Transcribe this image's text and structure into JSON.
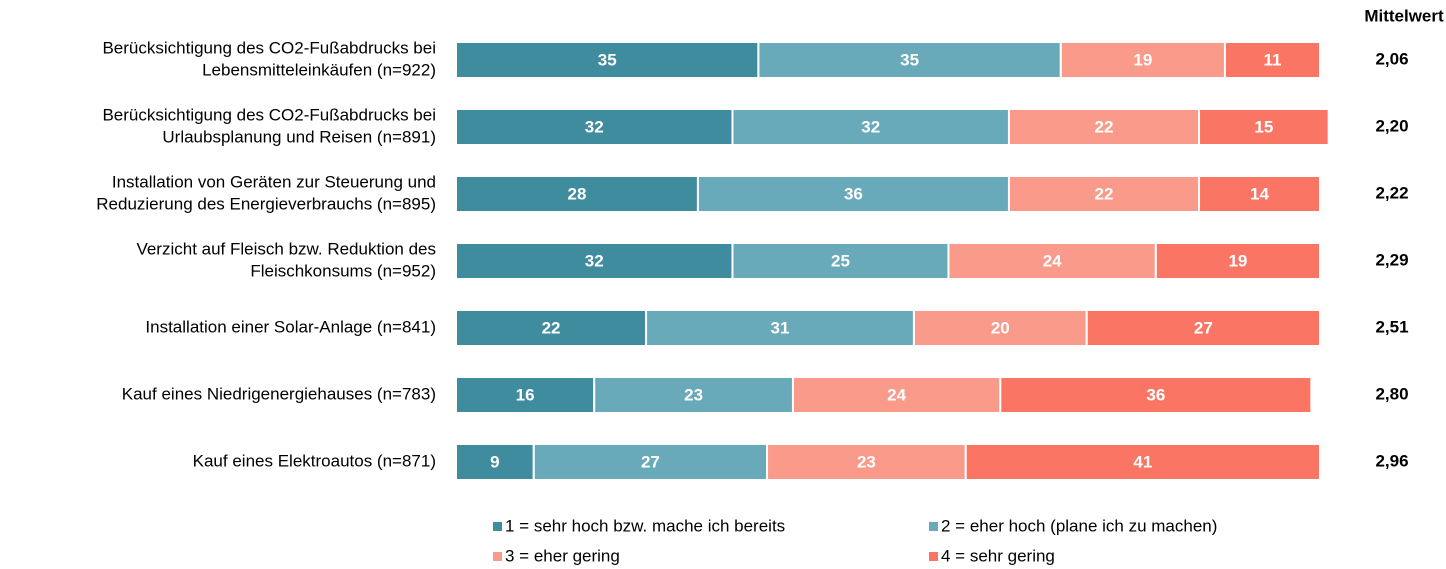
{
  "chart_data": {
    "type": "stacked-bar-horizontal",
    "categories": [
      [
        "Berücksichtigung des CO2-Fußabdrucks bei",
        "Lebensmitteleinkäufen (n=922)"
      ],
      [
        "Berücksichtigung des CO2-Fußabdrucks bei",
        "Urlaubsplanung und Reisen (n=891)"
      ],
      [
        "Installation von Geräten zur Steuerung und",
        "Reduzierung des Energieverbrauchs (n=895)"
      ],
      [
        "Verzicht auf Fleisch bzw. Reduktion des",
        "Fleischkonsums (n=952)"
      ],
      [
        "Installation einer Solar-Anlage (n=841)"
      ],
      [
        "Kauf eines Niedrigenergiehauses (n=783)"
      ],
      [
        "Kauf eines Elektroautos (n=871)"
      ]
    ],
    "series": [
      {
        "name": "1 = sehr hoch bzw. mache ich bereits",
        "color": "#3f8c9e",
        "values": [
          35,
          32,
          28,
          32,
          22,
          16,
          9
        ]
      },
      {
        "name": "2 = eher hoch (plane ich zu machen)",
        "color": "#68aaba",
        "values": [
          35,
          32,
          36,
          25,
          31,
          23,
          27
        ]
      },
      {
        "name": "3 = eher gering",
        "color": "#f99a8a",
        "values": [
          19,
          22,
          22,
          24,
          20,
          24,
          23
        ]
      },
      {
        "name": "4 = sehr gering",
        "color": "#fb7564",
        "values": [
          11,
          15,
          14,
          19,
          27,
          36,
          41
        ]
      }
    ],
    "xlim": [
      0,
      100
    ],
    "mean_header": "Mittelwert",
    "means": [
      "2,06",
      "2,20",
      "2,22",
      "2,29",
      "2,51",
      "2,80",
      "2,96"
    ]
  }
}
